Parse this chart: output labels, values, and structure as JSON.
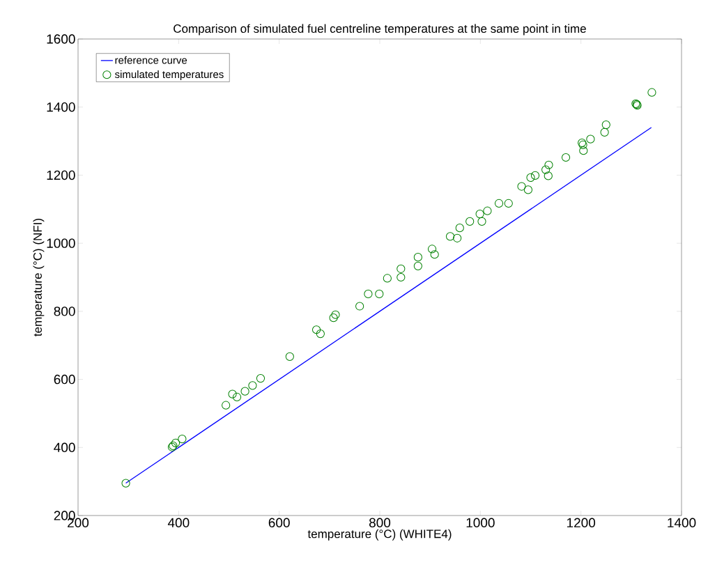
{
  "chart_data": {
    "type": "scatter",
    "title": "Comparison of simulated fuel centreline temperatures at the same point in time",
    "xlabel": "temperature (°C) (WHITE4)",
    "ylabel": "temperature (°C) (NFI)",
    "xlim": [
      200,
      1400
    ],
    "ylim": [
      200,
      1600
    ],
    "xticks": [
      200,
      400,
      600,
      800,
      1000,
      1200,
      1400
    ],
    "yticks": [
      200,
      400,
      600,
      800,
      1000,
      1200,
      1400,
      1600
    ],
    "grid": false,
    "legend": "top left",
    "series": [
      {
        "name": "reference curve",
        "type": "line",
        "color": "#0000ff",
        "marker": "none",
        "line_style": "solid",
        "x": [
          295,
          1340
        ],
        "values": [
          295,
          1340
        ]
      },
      {
        "name": "simulated temperatures",
        "type": "scatter",
        "color": "#008000",
        "marker": "circle",
        "x": [
          295,
          387,
          389,
          394,
          407,
          494,
          507,
          516,
          532,
          547,
          563,
          621,
          674,
          682,
          708,
          712,
          760,
          777,
          799,
          815,
          842,
          842,
          876,
          876,
          904,
          909,
          940,
          954,
          959,
          979,
          999,
          1003,
          1014,
          1037,
          1056,
          1082,
          1095,
          1100,
          1109,
          1130,
          1136,
          1135,
          1170,
          1202,
          1204,
          1205,
          1219,
          1247,
          1250,
          1309,
          1311,
          1312,
          1341
        ],
        "values": [
          295,
          401,
          405,
          413,
          425,
          524,
          557,
          548,
          565,
          582,
          603,
          667,
          746,
          734,
          781,
          790,
          815,
          851,
          851,
          897,
          925,
          900,
          959,
          933,
          983,
          967,
          1020,
          1015,
          1045,
          1064,
          1086,
          1064,
          1095,
          1117,
          1117,
          1167,
          1157,
          1193,
          1199,
          1216,
          1230,
          1198,
          1252,
          1295,
          1289,
          1272,
          1306,
          1326,
          1348,
          1410,
          1408,
          1405,
          1443
        ]
      }
    ]
  }
}
